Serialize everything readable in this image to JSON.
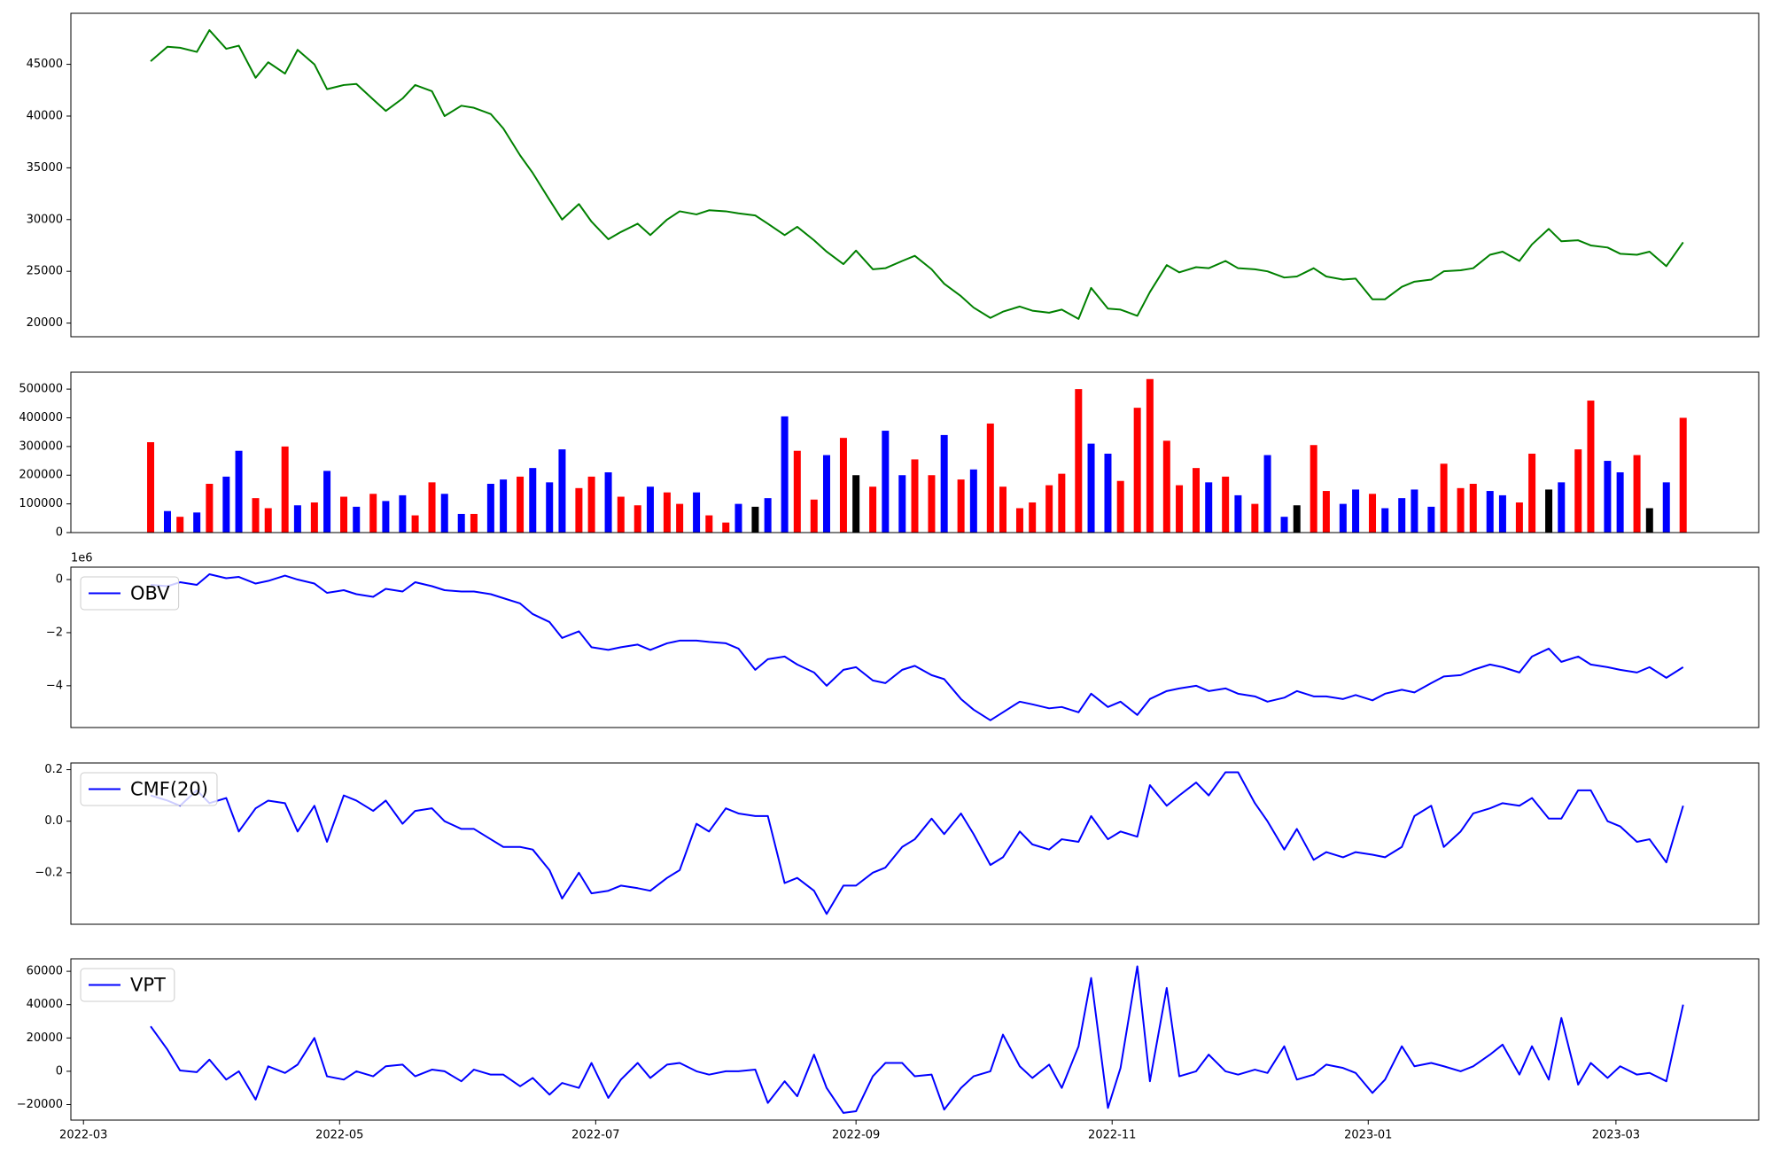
{
  "chart_data": {
    "x": [
      "2022-03-17",
      "2022-03-21",
      "2022-03-24",
      "2022-03-28",
      "2022-03-31",
      "2022-04-04",
      "2022-04-07",
      "2022-04-11",
      "2022-04-14",
      "2022-04-18",
      "2022-04-21",
      "2022-04-25",
      "2022-04-28",
      "2022-05-02",
      "2022-05-05",
      "2022-05-09",
      "2022-05-12",
      "2022-05-16",
      "2022-05-19",
      "2022-05-23",
      "2022-05-26",
      "2022-05-30",
      "2022-06-02",
      "2022-06-06",
      "2022-06-09",
      "2022-06-13",
      "2022-06-16",
      "2022-06-20",
      "2022-06-23",
      "2022-06-27",
      "2022-06-30",
      "2022-07-04",
      "2022-07-07",
      "2022-07-11",
      "2022-07-14",
      "2022-07-18",
      "2022-07-21",
      "2022-07-25",
      "2022-07-28",
      "2022-08-01",
      "2022-08-04",
      "2022-08-08",
      "2022-08-11",
      "2022-08-15",
      "2022-08-18",
      "2022-08-22",
      "2022-08-25",
      "2022-08-29",
      "2022-09-01",
      "2022-09-05",
      "2022-09-08",
      "2022-09-12",
      "2022-09-15",
      "2022-09-19",
      "2022-09-22",
      "2022-09-26",
      "2022-09-29",
      "2022-10-03",
      "2022-10-06",
      "2022-10-10",
      "2022-10-13",
      "2022-10-17",
      "2022-10-20",
      "2022-10-24",
      "2022-10-27",
      "2022-10-31",
      "2022-11-03",
      "2022-11-07",
      "2022-11-10",
      "2022-11-14",
      "2022-11-17",
      "2022-11-21",
      "2022-11-24",
      "2022-11-28",
      "2022-12-01",
      "2022-12-05",
      "2022-12-08",
      "2022-12-12",
      "2022-12-15",
      "2022-12-19",
      "2022-12-22",
      "2022-12-26",
      "2022-12-29",
      "2023-01-02",
      "2023-01-05",
      "2023-01-09",
      "2023-01-12",
      "2023-01-16",
      "2023-01-19",
      "2023-01-23",
      "2023-01-26",
      "2023-01-30",
      "2023-02-02",
      "2023-02-06",
      "2023-02-09",
      "2023-02-13",
      "2023-02-16",
      "2023-02-20",
      "2023-02-23",
      "2023-02-27",
      "2023-03-02",
      "2023-03-06",
      "2023-03-09",
      "2023-03-13",
      "2023-03-17"
    ],
    "xlim": [
      "2022-02-26",
      "2023-04-04"
    ],
    "xticks": [
      {
        "value": "2022-03-01",
        "label": "2022-03"
      },
      {
        "value": "2022-05-01",
        "label": "2022-05"
      },
      {
        "value": "2022-07-01",
        "label": "2022-07"
      },
      {
        "value": "2022-09-01",
        "label": "2022-09"
      },
      {
        "value": "2022-11-01",
        "label": "2022-11"
      },
      {
        "value": "2023-01-01",
        "label": "2023-01"
      },
      {
        "value": "2023-03-01",
        "label": "2023-03"
      }
    ],
    "panels": [
      {
        "type": "line",
        "ylim": [
          18680,
          49930
        ],
        "yticks": [
          20000,
          25000,
          30000,
          35000,
          40000,
          45000
        ],
        "series": [
          {
            "color": "green",
            "values": [
              45300,
              46700,
              46600,
              46200,
              48300,
              46500,
              46800,
              43700,
              45200,
              44100,
              46400,
              45000,
              42600,
              43000,
              43100,
              41600,
              40500,
              41700,
              43000,
              42400,
              40000,
              41000,
              40800,
              40200,
              38800,
              36200,
              34500,
              31900,
              30000,
              31500,
              29800,
              28100,
              28800,
              29600,
              28500,
              30000,
              30800,
              30500,
              30900,
              30800,
              30600,
              30400,
              29600,
              28500,
              29300,
              28000,
              26900,
              25700,
              27000,
              25200,
              25300,
              26000,
              26500,
              25200,
              23800,
              22600,
              21500,
              20500,
              21100,
              21600,
              21200,
              21000,
              21300,
              20400,
              23400,
              21400,
              21300,
              20700,
              23000,
              25600,
              24900,
              25400,
              25300,
              26000,
              25300,
              25200,
              25000,
              24400,
              24500,
              25300,
              24500,
              24200,
              24300,
              22300,
              22300,
              23500,
              24000,
              24200,
              25000,
              25100,
              25300,
              26600,
              26900,
              26000,
              27600,
              29100,
              27900,
              28000,
              27500,
              27300,
              26700,
              26600,
              26900,
              25500,
              27800
            ]
          }
        ]
      },
      {
        "type": "bar",
        "ylim": [
          0,
          559000
        ],
        "yticks": [
          0,
          100000,
          200000,
          300000,
          400000,
          500000
        ],
        "series": [
          {
            "values": [
              315000,
              75000,
              55000,
              70000,
              170000,
              195000,
              285000,
              120000,
              85000,
              300000,
              95000,
              105000,
              215000,
              125000,
              90000,
              135000,
              110000,
              130000,
              60000,
              175000,
              135000,
              65000,
              65000,
              170000,
              185000,
              195000,
              225000,
              175000,
              290000,
              155000,
              195000,
              210000,
              125000,
              95000,
              160000,
              140000,
              100000,
              140000,
              60000,
              35000,
              100000,
              90000,
              120000,
              405000,
              285000,
              115000,
              270000,
              330000,
              200000,
              160000,
              355000,
              200000,
              255000,
              200000,
              340000,
              185000,
              220000,
              380000,
              160000,
              85000,
              105000,
              165000,
              205000,
              500000,
              310000,
              275000,
              180000,
              435000,
              535000,
              320000,
              165000,
              225000,
              175000,
              195000,
              130000,
              100000,
              270000,
              55000,
              95000,
              305000,
              145000,
              100000,
              150000,
              135000,
              85000,
              120000,
              150000,
              90000,
              240000,
              155000,
              170000,
              145000,
              130000,
              105000,
              275000,
              150000,
              175000,
              290000,
              460000,
              250000,
              210000,
              270000,
              85000,
              175000,
              400000
            ],
            "colors": [
              "red",
              "blue",
              "red",
              "blue",
              "red",
              "blue",
              "blue",
              "red",
              "red",
              "red",
              "blue",
              "red",
              "blue",
              "red",
              "blue",
              "red",
              "blue",
              "blue",
              "red",
              "red",
              "blue",
              "blue",
              "red",
              "blue",
              "blue",
              "red",
              "blue",
              "blue",
              "blue",
              "red",
              "red",
              "blue",
              "red",
              "red",
              "blue",
              "red",
              "red",
              "blue",
              "red",
              "red",
              "blue",
              "black",
              "blue",
              "blue",
              "red",
              "red",
              "blue",
              "red",
              "black",
              "red",
              "blue",
              "blue",
              "red",
              "red",
              "blue",
              "red",
              "blue",
              "red",
              "red",
              "red",
              "red",
              "red",
              "red",
              "red",
              "blue",
              "blue",
              "red",
              "red",
              "red",
              "red",
              "red",
              "red",
              "blue",
              "red",
              "blue",
              "red",
              "blue",
              "blue",
              "black",
              "red",
              "red",
              "blue",
              "blue",
              "red",
              "blue",
              "blue",
              "blue",
              "blue",
              "red",
              "red",
              "red",
              "blue",
              "blue",
              "red",
              "red",
              "black",
              "blue",
              "red",
              "red",
              "blue",
              "blue",
              "red",
              "black",
              "blue",
              "red"
            ]
          }
        ]
      },
      {
        "type": "line",
        "ylim": [
          -5574000,
          468000
        ],
        "offset_text": "1e6",
        "legend": "upper left",
        "yticks": [
          {
            "value": -4000000,
            "label": "−4"
          },
          {
            "value": -2000000,
            "label": "−2"
          },
          {
            "value": 0,
            "label": "0"
          }
        ],
        "series": [
          {
            "name": "OBV",
            "color": "blue",
            "values": [
              -200000,
              -250000,
              -100000,
              -200000,
              200000,
              50000,
              100000,
              -150000,
              -50000,
              150000,
              0,
              -150000,
              -500000,
              -400000,
              -550000,
              -650000,
              -350000,
              -450000,
              -100000,
              -250000,
              -400000,
              -450000,
              -450000,
              -550000,
              -700000,
              -900000,
              -1300000,
              -1600000,
              -2200000,
              -1950000,
              -2550000,
              -2650000,
              -2550000,
              -2450000,
              -2650000,
              -2400000,
              -2300000,
              -2300000,
              -2350000,
              -2400000,
              -2600000,
              -3400000,
              -3000000,
              -2900000,
              -3200000,
              -3500000,
              -4000000,
              -3400000,
              -3300000,
              -3800000,
              -3900000,
              -3400000,
              -3250000,
              -3600000,
              -3750000,
              -4500000,
              -4900000,
              -5300000,
              -5000000,
              -4600000,
              -4700000,
              -4850000,
              -4800000,
              -5000000,
              -4300000,
              -4800000,
              -4600000,
              -5100000,
              -4500000,
              -4200000,
              -4100000,
              -4000000,
              -4200000,
              -4100000,
              -4300000,
              -4400000,
              -4600000,
              -4450000,
              -4200000,
              -4400000,
              -4400000,
              -4500000,
              -4350000,
              -4550000,
              -4300000,
              -4150000,
              -4250000,
              -3900000,
              -3650000,
              -3600000,
              -3400000,
              -3200000,
              -3300000,
              -3500000,
              -2900000,
              -2600000,
              -3100000,
              -2900000,
              -3200000,
              -3300000,
              -3400000,
              -3500000,
              -3300000,
              -3700000,
              -3300000
            ]
          }
        ]
      },
      {
        "type": "line",
        "ylim": [
          -0.4,
          0.226
        ],
        "legend": "upper left",
        "yticks": [
          {
            "value": -0.2,
            "label": "−0.2"
          },
          {
            "value": 0,
            "label": "0.0"
          },
          0.2
        ],
        "series": [
          {
            "name": "CMF(20)",
            "color": "blue",
            "values": [
              0.1,
              0.08,
              0.06,
              0.12,
              0.07,
              0.09,
              -0.04,
              0.05,
              0.08,
              0.07,
              -0.04,
              0.06,
              -0.08,
              0.1,
              0.08,
              0.04,
              0.08,
              -0.01,
              0.04,
              0.05,
              0.0,
              -0.03,
              -0.03,
              -0.07,
              -0.1,
              -0.1,
              -0.11,
              -0.19,
              -0.3,
              -0.2,
              -0.28,
              -0.27,
              -0.25,
              -0.26,
              -0.27,
              -0.22,
              -0.19,
              -0.01,
              -0.04,
              0.05,
              0.03,
              0.02,
              0.02,
              -0.24,
              -0.22,
              -0.27,
              -0.36,
              -0.25,
              -0.25,
              -0.2,
              -0.18,
              -0.1,
              -0.07,
              0.01,
              -0.05,
              0.03,
              -0.05,
              -0.17,
              -0.14,
              -0.04,
              -0.09,
              -0.11,
              -0.07,
              -0.08,
              0.02,
              -0.07,
              -0.04,
              -0.06,
              0.14,
              0.06,
              0.1,
              0.15,
              0.1,
              0.19,
              0.19,
              0.07,
              0.0,
              -0.11,
              -0.03,
              -0.15,
              -0.12,
              -0.14,
              -0.12,
              -0.13,
              -0.14,
              -0.1,
              0.02,
              0.06,
              -0.1,
              -0.04,
              0.03,
              0.05,
              0.07,
              0.06,
              0.09,
              0.01,
              0.01,
              0.12,
              0.12,
              0.0,
              -0.02,
              -0.08,
              -0.07,
              -0.16,
              0.06
            ]
          }
        ]
      },
      {
        "type": "line",
        "ylim": [
          -29300,
          67500
        ],
        "legend": "upper left",
        "yticks": [
          {
            "value": -20000,
            "label": "−20000"
          },
          0,
          20000,
          40000,
          60000
        ],
        "series": [
          {
            "name": "VPT",
            "color": "blue",
            "values": [
              27000,
              13000,
              500,
              -500,
              7000,
              -5000,
              0,
              -17000,
              3000,
              -1000,
              4000,
              20000,
              -3000,
              -5000,
              0,
              -3000,
              3000,
              4000,
              -3000,
              1000,
              0,
              -6000,
              1000,
              -2000,
              -2000,
              -9000,
              -4000,
              -14000,
              -7000,
              -10000,
              5000,
              -16000,
              -5000,
              5000,
              -4000,
              4000,
              5000,
              0,
              -2000,
              0,
              0,
              1000,
              -19000,
              -6000,
              -15000,
              10000,
              -10000,
              -25000,
              -24000,
              -3000,
              5000,
              5000,
              -3000,
              -2000,
              -23000,
              -10000,
              -3000,
              0,
              22000,
              3000,
              -4000,
              4000,
              -10000,
              15000,
              56000,
              -22000,
              2000,
              63000,
              -6000,
              50000,
              -3000,
              0,
              10000,
              0,
              -2000,
              1000,
              -1000,
              15000,
              -5000,
              -2000,
              4000,
              2000,
              -1000,
              -13000,
              -5000,
              15000,
              3000,
              5000,
              3000,
              0,
              3000,
              10000,
              16000,
              -2000,
              15000,
              -5000,
              32000,
              -8000,
              5000,
              -4000,
              3000,
              -2000,
              -1000,
              -6000,
              40000
            ]
          }
        ]
      }
    ]
  }
}
